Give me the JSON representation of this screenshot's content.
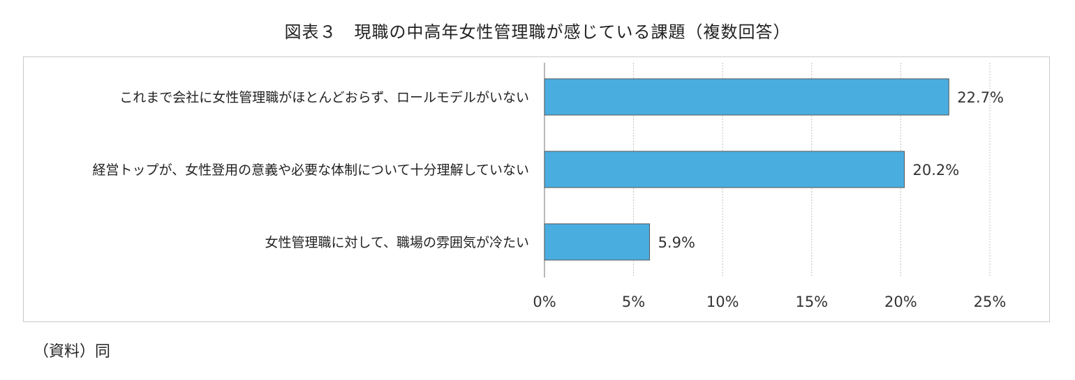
{
  "header": {
    "title": "図表３　現職の中高年女性管理職が感じている課題（複数回答）"
  },
  "footer": {
    "source": "（資料）同"
  },
  "chart_data": {
    "type": "bar",
    "orientation": "horizontal",
    "title": "図表３　現職の中高年女性管理職が感じている課題（複数回答）",
    "categories": [
      "これまで会社に女性管理職がほとんどおらず、ロールモデルがいない",
      "経営トップが、女性登用の意義や必要な体制について十分理解していない",
      "女性管理職に対して、職場の雰囲気が冷たい"
    ],
    "values": [
      22.7,
      20.2,
      5.9
    ],
    "value_labels": [
      "22.7%",
      "20.2%",
      "5.9%"
    ],
    "x_ticks": [
      "0%",
      "5%",
      "10%",
      "15%",
      "20%",
      "25%"
    ],
    "xlim": [
      0,
      25
    ],
    "grid": "vertical dotted",
    "legend": "none",
    "colors": {
      "bar": "#4aade0",
      "bar_border": "#555555",
      "grid": "#c0c0c0"
    }
  }
}
